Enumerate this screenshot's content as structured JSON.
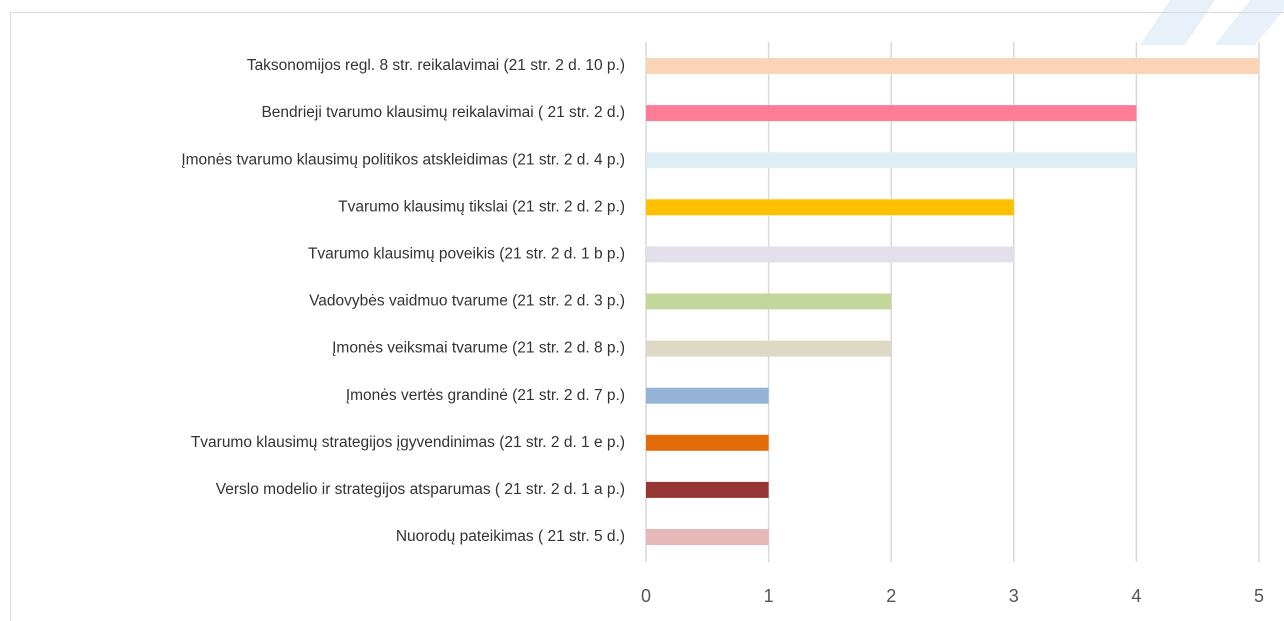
{
  "chart_data": {
    "type": "bar",
    "orientation": "horizontal",
    "categories": [
      "Taksonomijos regl. 8 str. reikalavimai  (21 str. 2 d. 10 p.)",
      "Bendrieji tvarumo klausimų reikalavimai ( 21 str. 2 d.)",
      "Įmonės tvarumo klausimų politikos atskleidimas (21 str. 2 d. 4 p.)",
      "Tvarumo klausimų tikslai (21 str. 2 d. 2 p.)",
      "Tvarumo klausimų poveikis (21 str. 2 d. 1 b p.)",
      "Vadovybės vaidmuo tvarume (21 str. 2 d. 3 p.)",
      "Įmonės veiksmai tvarume (21 str. 2 d. 8 p.)",
      "Įmonės vertės grandinė (21 str. 2 d. 7 p.)",
      "Tvarumo klausimų strategijos įgyvendinimas (21 str. 2 d. 1 e p.)",
      "Verslo modelio ir strategijos atsparumas ( 21 str. 2 d. 1 a p.)",
      "Nuorodų pateikimas ( 21 str. 5 d.)"
    ],
    "values": [
      5,
      4,
      4,
      3,
      3,
      2,
      2,
      1,
      1,
      1,
      1
    ],
    "colors": [
      "#F9D5B5",
      "#FF7C97",
      "#DDEEF5",
      "#FFC000",
      "#E4DFEC",
      "#C4D79B",
      "#DDD9C4",
      "#95B3D7",
      "#E26B0A",
      "#963634",
      "#E6B8B7"
    ],
    "xlim": [
      0,
      5
    ],
    "xticks": [
      0,
      1,
      2,
      3,
      4,
      5
    ],
    "grid": true
  }
}
